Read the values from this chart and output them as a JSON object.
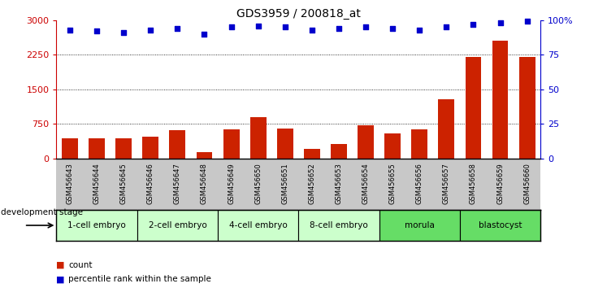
{
  "title": "GDS3959 / 200818_at",
  "samples": [
    "GSM456643",
    "GSM456644",
    "GSM456645",
    "GSM456646",
    "GSM456647",
    "GSM456648",
    "GSM456649",
    "GSM456650",
    "GSM456651",
    "GSM456652",
    "GSM456653",
    "GSM456654",
    "GSM456655",
    "GSM456656",
    "GSM456657",
    "GSM456658",
    "GSM456659",
    "GSM456660"
  ],
  "counts": [
    430,
    430,
    440,
    480,
    620,
    140,
    630,
    900,
    640,
    200,
    310,
    720,
    550,
    630,
    1280,
    2200,
    2550,
    2200
  ],
  "percentile": [
    93,
    92,
    91,
    93,
    94,
    90,
    95,
    96,
    95,
    93,
    94,
    95,
    94,
    93,
    95,
    97,
    98,
    99
  ],
  "stages": [
    {
      "label": "1-cell embryo",
      "start": 0,
      "end": 3,
      "color": "#ccffcc"
    },
    {
      "label": "2-cell embryo",
      "start": 3,
      "end": 6,
      "color": "#ccffcc"
    },
    {
      "label": "4-cell embryo",
      "start": 6,
      "end": 9,
      "color": "#ccffcc"
    },
    {
      "label": "8-cell embryo",
      "start": 9,
      "end": 12,
      "color": "#ccffcc"
    },
    {
      "label": "morula",
      "start": 12,
      "end": 15,
      "color": "#66dd66"
    },
    {
      "label": "blastocyst",
      "start": 15,
      "end": 18,
      "color": "#66dd66"
    }
  ],
  "bar_color": "#cc2200",
  "dot_color": "#0000cc",
  "ylim_left": [
    0,
    3000
  ],
  "ylim_right": [
    0,
    100
  ],
  "yticks_left": [
    0,
    750,
    1500,
    2250,
    3000
  ],
  "yticks_right": [
    0,
    25,
    50,
    75,
    100
  ],
  "background_color": "#ffffff",
  "sample_bg_color": "#c8c8c8",
  "xlabel_stage": "development stage",
  "legend_count": "count",
  "legend_pct": "percentile rank within the sample",
  "grid_color": "black",
  "left_axis_color": "#cc0000",
  "right_axis_color": "#0000cc"
}
